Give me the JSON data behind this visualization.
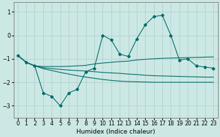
{
  "xlabel": "Humidex (Indice chaleur)",
  "bg_color": "#cce8e4",
  "grid_color": "#aaccca",
  "line_color": "#006b6b",
  "x": [
    0,
    1,
    2,
    3,
    4,
    5,
    6,
    7,
    8,
    9,
    10,
    11,
    12,
    13,
    14,
    15,
    16,
    17,
    18,
    19,
    20,
    21,
    22,
    23
  ],
  "line_main": [
    -0.85,
    -1.15,
    -1.3,
    -2.45,
    -2.6,
    -3.0,
    -2.45,
    -2.3,
    -1.55,
    -1.4,
    0.0,
    -0.2,
    -0.8,
    -0.9,
    -0.15,
    0.45,
    0.8,
    0.85,
    0.0,
    -1.05,
    -1.0,
    -1.3,
    -1.35,
    -1.4
  ],
  "line_upper": [
    -0.85,
    -1.15,
    -1.3,
    -1.33,
    -1.33,
    -1.33,
    -1.32,
    -1.3,
    -1.28,
    -1.22,
    -1.18,
    -1.15,
    -1.12,
    -1.1,
    -1.05,
    -1.02,
    -1.0,
    -0.98,
    -0.97,
    -0.96,
    -0.95,
    -0.94,
    -0.93,
    -0.92
  ],
  "line_mid": [
    -0.85,
    -1.15,
    -1.3,
    -1.38,
    -1.42,
    -1.45,
    -1.48,
    -1.5,
    -1.52,
    -1.55,
    -1.58,
    -1.6,
    -1.62,
    -1.65,
    -1.67,
    -1.7,
    -1.72,
    -1.73,
    -1.74,
    -1.75,
    -1.76,
    -1.77,
    -1.78,
    -1.78
  ],
  "line_lower": [
    -0.85,
    -1.15,
    -1.3,
    -1.42,
    -1.5,
    -1.58,
    -1.65,
    -1.72,
    -1.78,
    -1.83,
    -1.88,
    -1.92,
    -1.95,
    -1.97,
    -1.98,
    -1.99,
    -2.0,
    -2.0,
    -2.0,
    -2.0,
    -2.0,
    -2.0,
    -2.0,
    -2.0
  ],
  "ylim": [
    -3.5,
    1.4
  ],
  "yticks": [
    -3,
    -2,
    -1,
    0,
    1
  ],
  "xticks": [
    0,
    1,
    2,
    3,
    4,
    5,
    6,
    7,
    8,
    9,
    10,
    11,
    12,
    13,
    14,
    15,
    16,
    17,
    18,
    19,
    20,
    21,
    22,
    23
  ],
  "label_fontsize": 6.5,
  "tick_fontsize": 5.8
}
